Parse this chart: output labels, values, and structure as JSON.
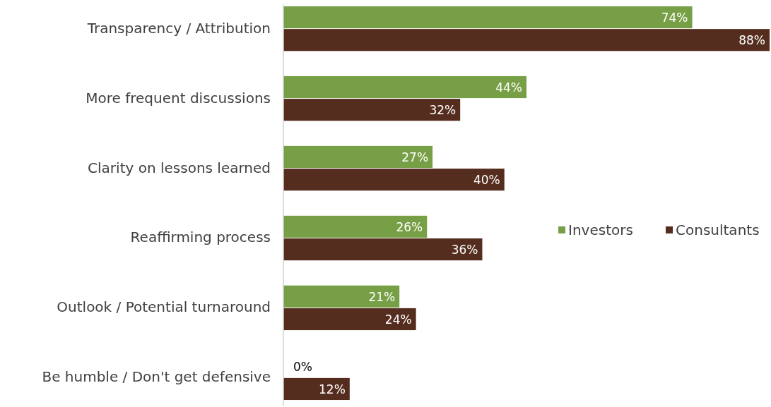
{
  "chart_data": {
    "type": "bar",
    "orientation": "horizontal",
    "categories": [
      "Transparency / Attribution",
      "More frequent discussions",
      "Clarity on lessons learned",
      "Reaffirming process",
      "Outlook / Potential turnaround",
      "Be humble / Don't get defensive"
    ],
    "series": [
      {
        "name": "Investors",
        "color": "#77a046",
        "values": [
          74,
          44,
          27,
          26,
          21,
          0
        ],
        "value_labels": [
          "74%",
          "44%",
          "27%",
          "26%",
          "21%",
          "0%"
        ]
      },
      {
        "name": "Consultants",
        "color": "#552d1e",
        "values": [
          88,
          32,
          40,
          36,
          24,
          12
        ],
        "value_labels": [
          "88%",
          "32%",
          "40%",
          "36%",
          "24%",
          "12%"
        ]
      }
    ],
    "legend": "right",
    "grid": false
  }
}
